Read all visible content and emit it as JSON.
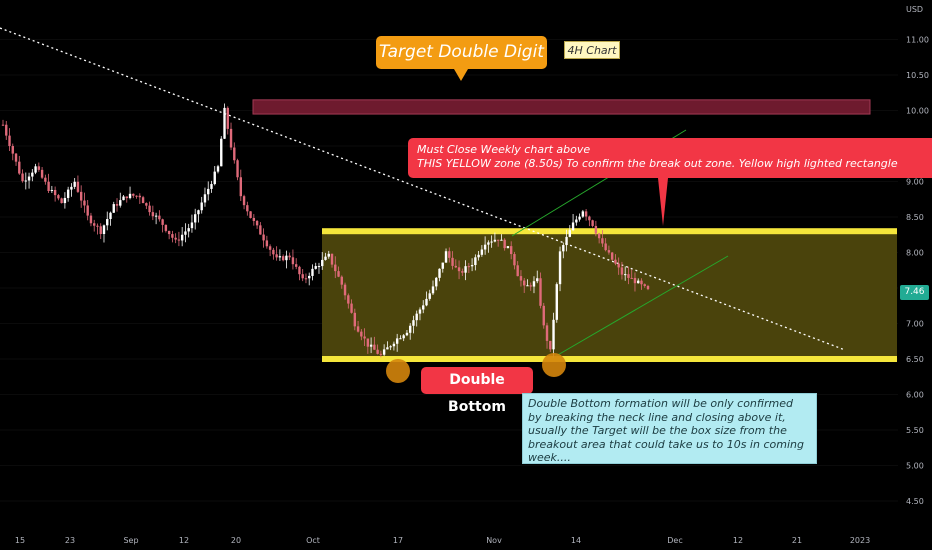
{
  "annotations": {
    "target": "Target Double Digit",
    "timeframe": "4H Chart",
    "weekly_line1": "Must Close Weekly chart above",
    "weekly_line2": "THIS YELLOW zone (8.50s) To confirm the break out zone. Yellow high lighted rectangle",
    "double_bottom": "Double Bottom",
    "note_lines": [
      "Double Bottom formation will be only confirmed",
      "by breaking the neck line and closing above it,",
      "usually the Target will be the box size from the",
      "breakout area that could take us to 10s in coming",
      "week...."
    ]
  },
  "price_label": "7.46",
  "currency": "USD",
  "colors": {
    "background": "#000000",
    "up_candle": "#ffffff",
    "down_candle": "#e06a7a",
    "zone_fill": "#4a430c",
    "zone_border": "#f5e63b",
    "target_zone": "#6e1a2e",
    "callout_red": "#f23645",
    "callout_orange": "#f39c12",
    "channel": "#26a82c",
    "trendline": "#ffffff",
    "bottom_marker": "#d4850c"
  },
  "chart_data": {
    "type": "candlestick",
    "y_ticks": [
      4.5,
      5.0,
      5.5,
      6.0,
      6.5,
      7.0,
      7.5,
      8.0,
      8.5,
      9.0,
      9.5,
      10.0,
      10.5,
      11.0
    ],
    "y_tick_labels": [
      "4.50",
      "5.00",
      "5.50",
      "6.00",
      "6.50",
      "7.00",
      "7.50",
      "8.00",
      "8.50",
      "9.00",
      "9.50",
      "10.00",
      "10.50",
      "11.00"
    ],
    "x_tick_labels": [
      "15",
      "23",
      "Sep",
      "12",
      "20",
      "Oct",
      "17",
      "Nov",
      "14",
      "Dec",
      "12",
      "21",
      "2023"
    ],
    "ylim": [
      4.2,
      11.5
    ],
    "consolidation_zone": {
      "low": 6.5,
      "high": 8.3
    },
    "target_zone": {
      "low": 9.95,
      "high": 10.15
    },
    "double_bottoms": [
      6.5,
      6.55
    ],
    "last_price": 7.46,
    "close_path": [
      [
        0,
        9.8
      ],
      [
        6,
        9.0
      ],
      [
        10,
        9.2
      ],
      [
        14,
        8.9
      ],
      [
        18,
        8.7
      ],
      [
        22,
        9.0
      ],
      [
        26,
        8.5
      ],
      [
        30,
        8.3
      ],
      [
        34,
        8.65
      ],
      [
        38,
        8.8
      ],
      [
        42,
        8.8
      ],
      [
        44,
        8.65
      ],
      [
        49,
        8.4
      ],
      [
        53,
        8.15
      ],
      [
        58,
        8.4
      ],
      [
        62,
        8.8
      ],
      [
        66,
        9.2
      ],
      [
        68,
        10.0
      ],
      [
        70,
        9.5
      ],
      [
        73,
        8.8
      ],
      [
        76,
        8.5
      ],
      [
        80,
        8.2
      ],
      [
        84,
        7.9
      ],
      [
        88,
        7.95
      ],
      [
        92,
        7.6
      ],
      [
        96,
        7.8
      ],
      [
        100,
        7.95
      ],
      [
        104,
        7.55
      ],
      [
        108,
        7.0
      ],
      [
        112,
        6.7
      ],
      [
        116,
        6.55
      ],
      [
        120,
        6.75
      ],
      [
        124,
        6.9
      ],
      [
        128,
        7.2
      ],
      [
        132,
        7.5
      ],
      [
        136,
        8.0
      ],
      [
        140,
        7.7
      ],
      [
        144,
        7.85
      ],
      [
        148,
        8.15
      ],
      [
        152,
        8.2
      ],
      [
        156,
        8.0
      ],
      [
        158,
        7.7
      ],
      [
        160,
        7.5
      ],
      [
        164,
        7.6
      ],
      [
        166,
        6.95
      ],
      [
        168,
        6.6
      ],
      [
        171,
        8.0
      ],
      [
        175,
        8.4
      ],
      [
        178,
        8.6
      ],
      [
        181,
        8.4
      ],
      [
        184,
        8.1
      ],
      [
        187,
        7.9
      ],
      [
        190,
        7.7
      ],
      [
        194,
        7.6
      ],
      [
        198,
        7.46
      ]
    ]
  }
}
